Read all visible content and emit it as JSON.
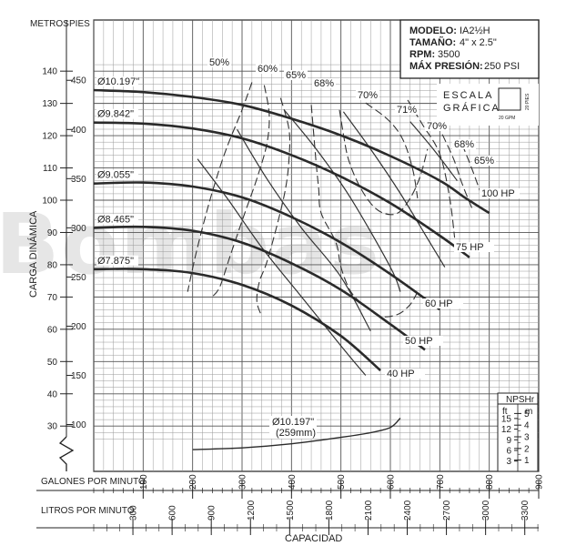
{
  "chart_data": {
    "type": "line",
    "watermark": "Bombas",
    "specs": {
      "model_label": "MODELO:",
      "model": "IA2½H",
      "size_label": "TAMAÑO:",
      "size": "4\" x 2.5\"",
      "rpm_label": "RPM:",
      "rpm": "3500",
      "pressure_label": "MÁX PRESIÓN:",
      "pressure": "250 PSI"
    },
    "scale_box": {
      "line1": "ESCALA",
      "line2": "GRÁFICA",
      "v": "20 PIES",
      "h": "20 GPM"
    },
    "y_axis": {
      "label": "CARGA DINÁMICA",
      "meters_label": "METROS",
      "feet_label": "PIES",
      "meters_ticks": [
        30,
        40,
        50,
        60,
        70,
        80,
        90,
        100,
        110,
        120,
        130,
        140
      ],
      "feet_ticks": [
        100,
        150,
        200,
        250,
        300,
        350,
        400,
        450
      ],
      "feet_range": [
        85,
        460
      ],
      "break_marker": true
    },
    "x_axis": {
      "label": "CAPACIDAD",
      "gpm_label": "GALONES POR MINUTO",
      "gpm_ticks": [
        100,
        200,
        300,
        400,
        500,
        600,
        700,
        800,
        900
      ],
      "lpm_label": "LITROS POR MINUTO",
      "lpm_ticks": [
        300,
        600,
        900,
        1200,
        1500,
        1800,
        2100,
        2400,
        2700,
        3000,
        3300
      ],
      "range": [
        0,
        900
      ]
    },
    "npsh_scale": {
      "title": "NPSHr",
      "ft_label": "ft",
      "m_label": "m",
      "ft_ticks": [
        15,
        12,
        9,
        6,
        3
      ],
      "m_ticks": [
        5,
        4,
        3,
        2,
        1
      ],
      "m_range": [
        0.5,
        5.3
      ]
    },
    "series": [
      {
        "name": "Ø10.197\"",
        "x": [
          0,
          100,
          200,
          300,
          400,
          500,
          600,
          700,
          750,
          800
        ],
        "y": [
          440,
          438,
          433,
          425,
          411,
          394,
          373,
          348,
          331,
          315
        ]
      },
      {
        "name": "Ø9.842\"",
        "x": [
          0,
          100,
          200,
          300,
          400,
          500,
          600,
          700,
          760
        ],
        "y": [
          407,
          406,
          401,
          391,
          374,
          352,
          325,
          292,
          270
        ]
      },
      {
        "name": "Ø9.055\"",
        "x": [
          0,
          100,
          200,
          300,
          400,
          500,
          600,
          700
        ],
        "y": [
          345,
          346,
          342,
          331,
          311,
          285,
          253,
          217
        ]
      },
      {
        "name": "Ø8.465\"",
        "x": [
          0,
          100,
          200,
          300,
          400,
          500,
          600,
          670
        ],
        "y": [
          300,
          301,
          297,
          285,
          264,
          237,
          202,
          176
        ]
      },
      {
        "name": "Ø7.875\"",
        "x": [
          0,
          100,
          200,
          300,
          400,
          500,
          580
        ],
        "y": [
          258,
          258,
          254,
          242,
          221,
          190,
          155
        ]
      }
    ],
    "efficiency": [
      {
        "name": "50%",
        "x": [
          320,
          300,
          268,
          245,
          225,
          205,
          190
        ],
        "y": [
          448,
          420,
          380,
          345,
          310,
          270,
          235
        ]
      },
      {
        "name": "60%",
        "x": [
          345,
          355,
          350,
          330,
          302,
          275,
          255,
          240
        ],
        "y": [
          445,
          415,
          385,
          350,
          310,
          270,
          240,
          230
        ]
      },
      {
        "name": "65%",
        "x": [
          378,
          395,
          395,
          388,
          372,
          350,
          335,
          330,
          340
        ],
        "y": [
          432,
          400,
          370,
          340,
          305,
          265,
          245,
          225,
          210
        ]
      },
      {
        "name": "68%",
        "x": [
          440,
          445,
          450,
          455,
          460,
          490,
          500,
          520,
          550,
          580,
          615,
          640,
          655
        ],
        "y": [
          425,
          395,
          365,
          340,
          315,
          285,
          260,
          235,
          220,
          210,
          212,
          222,
          235
        ]
      },
      {
        "name": "70%",
        "x": [
          497,
          505,
          515,
          535,
          560,
          585,
          615,
          640,
          660,
          675
        ],
        "y": [
          420,
          395,
          370,
          345,
          325,
          315,
          315,
          330,
          352,
          380
        ]
      },
      {
        "name": "71%",
        "x": [
          550,
          595,
          625,
          645,
          655
        ],
        "y": [
          427,
          410,
          390,
          360,
          330
        ]
      },
      {
        "name": "70%",
        "x": [
          635,
          665,
          700,
          720,
          730
        ],
        "y": [
          430,
          405,
          375,
          330,
          290
        ]
      },
      {
        "name": "68%",
        "x": [
          705,
          728,
          745,
          765
        ],
        "y": [
          395,
          370,
          345,
          320
        ]
      },
      {
        "name": "65%",
        "x": [
          745,
          765,
          783
        ],
        "y": [
          385,
          360,
          335
        ]
      }
    ],
    "power": [
      {
        "name": "100 HP",
        "x": [
          640,
          690,
          735
        ],
        "y": [
          408,
          378,
          348
        ]
      },
      {
        "name": "75 HP",
        "x": [
          505,
          560,
          620,
          680,
          710
        ],
        "y": [
          418,
          380,
          335,
          285,
          260
        ]
      },
      {
        "name": "60 HP",
        "x": [
          385,
          450,
          520,
          600,
          620
        ],
        "y": [
          420,
          380,
          330,
          260,
          235
        ]
      },
      {
        "name": "50 HP",
        "x": [
          290,
          350,
          420,
          500,
          560
        ],
        "y": [
          400,
          350,
          300,
          250,
          195
        ]
      },
      {
        "name": "40 HP",
        "x": [
          210,
          270,
          340,
          420,
          500,
          550
        ],
        "y": [
          370,
          330,
          280,
          230,
          180,
          150
        ]
      }
    ],
    "npsh_curve": {
      "name": "Ø10.197\"",
      "sub": "(259mm)",
      "x": [
        200,
        300,
        400,
        500,
        560,
        600,
        620
      ],
      "m": [
        1.9,
        2.05,
        2.4,
        2.95,
        3.35,
        3.8,
        4.6
      ]
    }
  }
}
